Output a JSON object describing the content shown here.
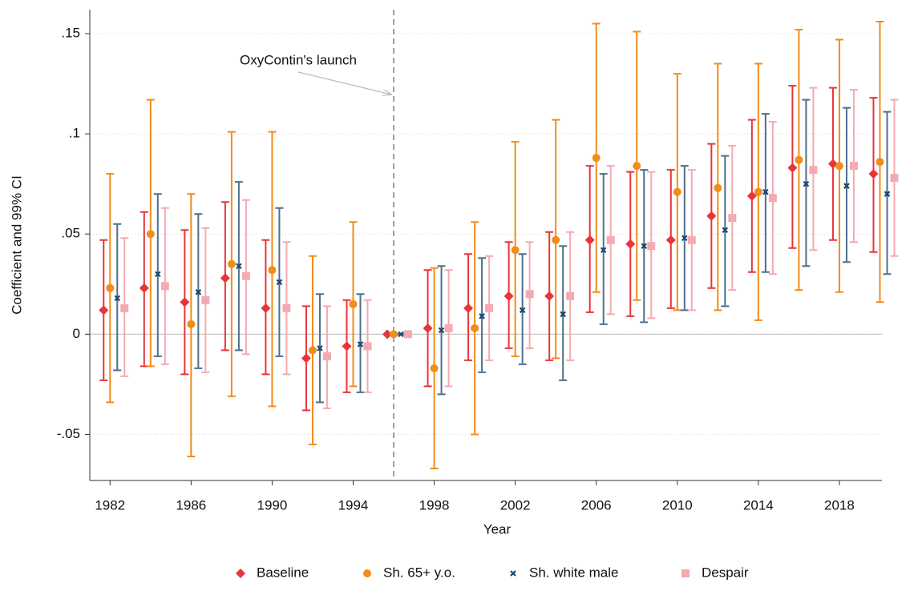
{
  "chart_data": {
    "type": "errorbar",
    "annotation": "OxyContin's launch",
    "x_label": "Year",
    "y_label": "Coefficient and 99% CI",
    "x": [
      1982,
      1984,
      1986,
      1988,
      1990,
      1992,
      1994,
      1996,
      1998,
      2000,
      2002,
      2004,
      2006,
      2008,
      2010,
      2012,
      2014,
      2016,
      2018,
      2020
    ],
    "xlim": [
      1981,
      2020.1
    ],
    "xticks": [
      1982,
      1986,
      1990,
      1994,
      1998,
      2002,
      2006,
      2010,
      2014,
      2018
    ],
    "ylim": [
      -0.073,
      0.162
    ],
    "yticks": [
      {
        "value": -0.05,
        "label": "-.05"
      },
      0,
      {
        "value": 0.05,
        "label": ".05"
      },
      {
        "value": 0.1,
        "label": ".1"
      },
      {
        "value": 0.15,
        "label": ".15"
      }
    ],
    "grid": true,
    "hline": 0,
    "vline": 1996,
    "legend": "bottom",
    "series": [
      {
        "name": "Baseline",
        "color": "#e8343a",
        "marker": "diamond",
        "values": [
          0.012,
          0.023,
          0.016,
          0.028,
          0.013,
          -0.012,
          -0.006,
          0,
          0.003,
          0.013,
          0.019,
          0.019,
          0.047,
          0.045,
          0.047,
          0.059,
          0.069,
          0.083,
          0.085,
          0.08
        ],
        "lower": [
          -0.023,
          -0.016,
          -0.02,
          -0.008,
          -0.02,
          -0.038,
          -0.029,
          0,
          -0.026,
          -0.013,
          -0.007,
          -0.013,
          0.011,
          0.009,
          0.013,
          0.023,
          0.031,
          0.043,
          0.047,
          0.041
        ],
        "upper": [
          0.047,
          0.061,
          0.052,
          0.066,
          0.047,
          0.014,
          0.017,
          0,
          0.032,
          0.04,
          0.046,
          0.051,
          0.084,
          0.081,
          0.082,
          0.095,
          0.107,
          0.124,
          0.123,
          0.118
        ]
      },
      {
        "name": "Sh. 65+ y.o.",
        "color": "#f28c1a",
        "marker": "circle",
        "values": [
          0.023,
          0.05,
          0.005,
          0.035,
          0.032,
          -0.008,
          0.015,
          0,
          -0.017,
          0.003,
          0.042,
          0.047,
          0.088,
          0.084,
          0.071,
          0.073,
          0.071,
          0.087,
          0.084,
          0.086
        ],
        "lower": [
          -0.034,
          -0.016,
          -0.061,
          -0.031,
          -0.036,
          -0.055,
          -0.026,
          0,
          -0.067,
          -0.05,
          -0.011,
          -0.012,
          0.021,
          0.017,
          0.012,
          0.012,
          0.007,
          0.022,
          0.021,
          0.016
        ],
        "upper": [
          0.08,
          0.117,
          0.07,
          0.101,
          0.101,
          0.039,
          0.056,
          0,
          0.033,
          0.056,
          0.096,
          0.107,
          0.155,
          0.151,
          0.13,
          0.135,
          0.135,
          0.152,
          0.147,
          0.156
        ]
      },
      {
        "name": "Sh. white male",
        "color": "#4f6f8c",
        "marker": "x",
        "values": [
          0.018,
          0.03,
          0.021,
          0.034,
          0.026,
          -0.007,
          -0.005,
          0,
          0.002,
          0.009,
          0.012,
          0.01,
          0.042,
          0.044,
          0.048,
          0.052,
          0.071,
          0.075,
          0.074,
          0.07
        ],
        "lower": [
          -0.018,
          -0.011,
          -0.017,
          -0.008,
          -0.011,
          -0.034,
          -0.029,
          0,
          -0.03,
          -0.019,
          -0.015,
          -0.023,
          0.005,
          0.006,
          0.012,
          0.014,
          0.031,
          0.034,
          0.036,
          0.03
        ],
        "upper": [
          0.055,
          0.07,
          0.06,
          0.076,
          0.063,
          0.02,
          0.02,
          0,
          0.034,
          0.038,
          0.04,
          0.044,
          0.08,
          0.082,
          0.084,
          0.089,
          0.11,
          0.117,
          0.113,
          0.111
        ]
      },
      {
        "name": "Despair",
        "color": "#f5a9b0",
        "marker": "square",
        "values": [
          0.013,
          0.024,
          0.017,
          0.029,
          0.013,
          -0.011,
          -0.006,
          0,
          0.003,
          0.013,
          0.02,
          0.019,
          0.047,
          0.044,
          0.047,
          0.058,
          0.068,
          0.082,
          0.084,
          0.078
        ],
        "lower": [
          -0.021,
          -0.015,
          -0.019,
          -0.01,
          -0.02,
          -0.037,
          -0.029,
          0,
          -0.026,
          -0.013,
          -0.007,
          -0.013,
          0.01,
          0.008,
          0.012,
          0.022,
          0.03,
          0.042,
          0.046,
          0.039
        ],
        "upper": [
          0.048,
          0.063,
          0.053,
          0.067,
          0.046,
          0.014,
          0.017,
          0,
          0.032,
          0.039,
          0.046,
          0.051,
          0.084,
          0.081,
          0.082,
          0.094,
          0.106,
          0.123,
          0.122,
          0.117
        ]
      }
    ]
  }
}
